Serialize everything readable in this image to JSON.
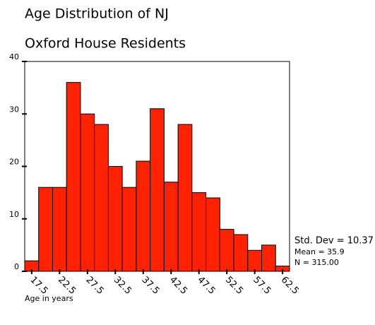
{
  "chart_data": {
    "type": "histogram",
    "title": [
      "Age Distribution of NJ",
      "Oxford House Residents"
    ],
    "xlabel": "Age in years",
    "bins": [
      16.25,
      18.75,
      21.25,
      23.75,
      26.25,
      28.75,
      31.25,
      33.75,
      36.25,
      38.75,
      41.25,
      43.75,
      46.25,
      48.75,
      51.25,
      53.75,
      56.25,
      58.75,
      61.25,
      63.75
    ],
    "counts": [
      2,
      16,
      16,
      36,
      30,
      28,
      20,
      16,
      21,
      31,
      17,
      28,
      15,
      14,
      8,
      7,
      4,
      5,
      1
    ],
    "color": "#ff2200",
    "xlim": [
      16.25,
      63.75
    ],
    "xticks": [
      17.5,
      22.5,
      27.5,
      32.5,
      37.5,
      42.5,
      47.5,
      52.5,
      57.5,
      62.5
    ],
    "ylim": [
      0,
      40
    ],
    "yticks": [
      0,
      10,
      20,
      30,
      40
    ],
    "annotations": [
      "Std. Dev = 10.37",
      "Mean = 35.9",
      "N = 315.00"
    ]
  }
}
